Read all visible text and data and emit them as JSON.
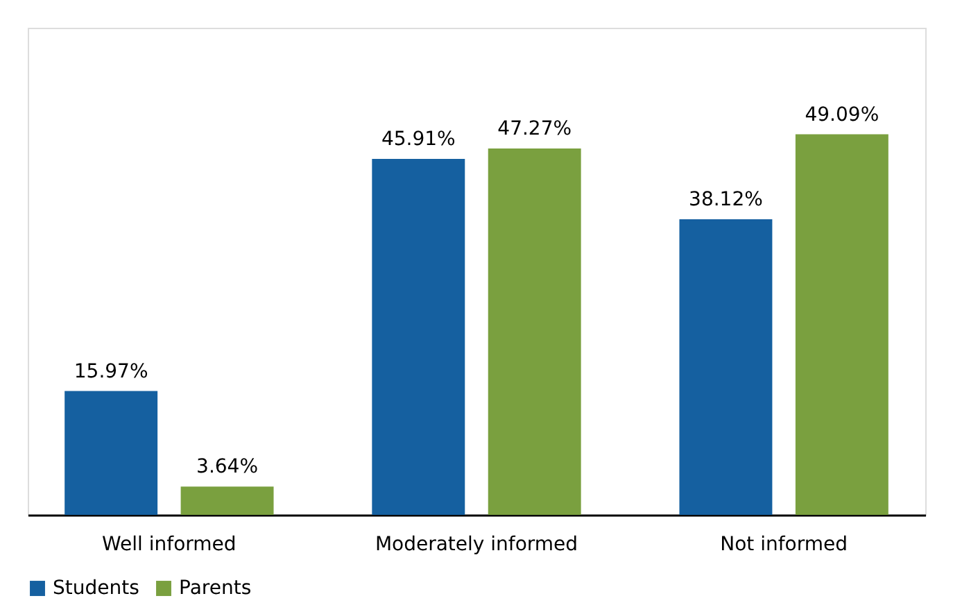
{
  "chart_data": {
    "type": "bar",
    "categories": [
      "Well informed",
      "Moderately informed",
      "Not informed"
    ],
    "series": [
      {
        "name": "Students",
        "color": "#1560a0",
        "values": [
          15.97,
          45.91,
          38.12
        ],
        "value_labels": [
          "15.97%",
          "45.91%",
          "38.12%"
        ]
      },
      {
        "name": "Parents",
        "color": "#7aa03f",
        "values": [
          3.64,
          47.27,
          49.09
        ],
        "value_labels": [
          "3.64%",
          "47.27%",
          "49.09%"
        ]
      }
    ],
    "legend": "bottom",
    "grid": false
  }
}
